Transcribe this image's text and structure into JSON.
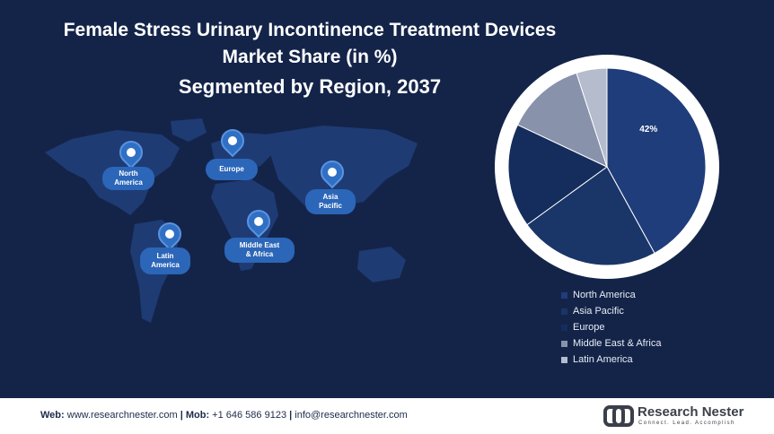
{
  "title": {
    "line1": "Female Stress Urinary Incontinence Treatment Devices",
    "line2": "Market Share (in %)",
    "line3": "Segmented by Region, 2037"
  },
  "map": {
    "regions": [
      {
        "label": "North\nAmerica"
      },
      {
        "label": "Europe"
      },
      {
        "label": "Asia\nPacific"
      },
      {
        "label": "Latin\nAmerica"
      },
      {
        "label": "Middle East\n& Africa"
      }
    ]
  },
  "chart_data": {
    "type": "pie",
    "categories": [
      "North America",
      "Asia Pacific",
      "Europe",
      "Middle East & Africa",
      "Latin America"
    ],
    "values": [
      42,
      23,
      17,
      13,
      5
    ],
    "data_labels": [
      "42%",
      "",
      "",
      "",
      ""
    ],
    "colors": [
      "#1f3d7a",
      "#1a3568",
      "#152d5c",
      "#8892ab",
      "#b4bccd"
    ],
    "legend_position": "bottom-right"
  },
  "footer": {
    "web_label": "Web:",
    "web": "www.researchnester.com",
    "sep1": "|",
    "mob_label": "Mob:",
    "mob": "+1 646 586 9123",
    "sep2": "|",
    "email": "info@researchnester.com",
    "brand_name": "Research Nester",
    "brand_tagline": "Connect. Lead. Accomplish"
  }
}
